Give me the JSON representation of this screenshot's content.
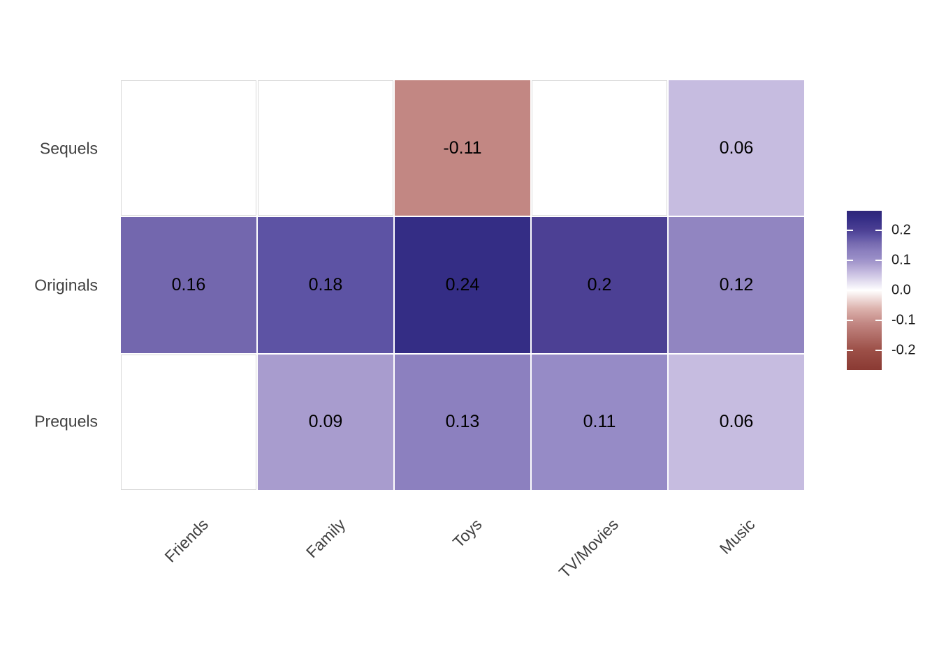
{
  "chart_data": {
    "type": "heatmap",
    "title": "",
    "xlabel": "",
    "ylabel": "",
    "rows": [
      "Sequels",
      "Originals",
      "Prequels"
    ],
    "columns": [
      "Friends",
      "Family",
      "Toys",
      "TV/Movies",
      "Music"
    ],
    "values": [
      [
        null,
        null,
        -0.11,
        null,
        0.06
      ],
      [
        0.16,
        0.18,
        0.24,
        0.2,
        0.12
      ],
      [
        null,
        0.09,
        0.13,
        0.11,
        0.06
      ]
    ],
    "value_labels": [
      [
        "",
        "",
        "-0.11",
        "",
        "0.06"
      ],
      [
        "0.16",
        "0.18",
        "0.24",
        "0.2",
        "0.12"
      ],
      [
        "",
        "0.09",
        "0.13",
        "0.11",
        "0.06"
      ]
    ],
    "legend": {
      "position": "right",
      "ticks": [
        0.2,
        0.1,
        0.0,
        -0.1,
        -0.2
      ],
      "tick_labels": [
        "0.2",
        "0.1",
        "0.0",
        "-0.1",
        "-0.2"
      ],
      "scale_max": 0.265,
      "scale_min": -0.265
    },
    "colormap": {
      "anchors": [
        {
          "v": 0.265,
          "c": "#2e2679"
        },
        {
          "v": 0.24,
          "c": "#342d85"
        },
        {
          "v": 0.2,
          "c": "#4c4094"
        },
        {
          "v": 0.18,
          "c": "#5d53a4"
        },
        {
          "v": 0.16,
          "c": "#7367ae"
        },
        {
          "v": 0.13,
          "c": "#8c80bf"
        },
        {
          "v": 0.12,
          "c": "#9185c1"
        },
        {
          "v": 0.11,
          "c": "#968bc6"
        },
        {
          "v": 0.09,
          "c": "#a89cce"
        },
        {
          "v": 0.06,
          "c": "#c6bce0"
        },
        {
          "v": 0.0,
          "c": "#ffffff"
        },
        {
          "v": -0.06,
          "c": "#ddb3ae"
        },
        {
          "v": -0.11,
          "c": "#c28783"
        },
        {
          "v": -0.2,
          "c": "#9c4f47"
        },
        {
          "v": -0.265,
          "c": "#8a3a33"
        }
      ],
      "na_color": "#ffffff",
      "na_border": "#d9d9d9"
    },
    "grid": false
  },
  "colors": {
    "background": "#ffffff",
    "axis_text": "#404040",
    "cell_text": "#000000",
    "legend_text": "#1a1a1a",
    "legend_tick_mark": "#ffffff"
  }
}
